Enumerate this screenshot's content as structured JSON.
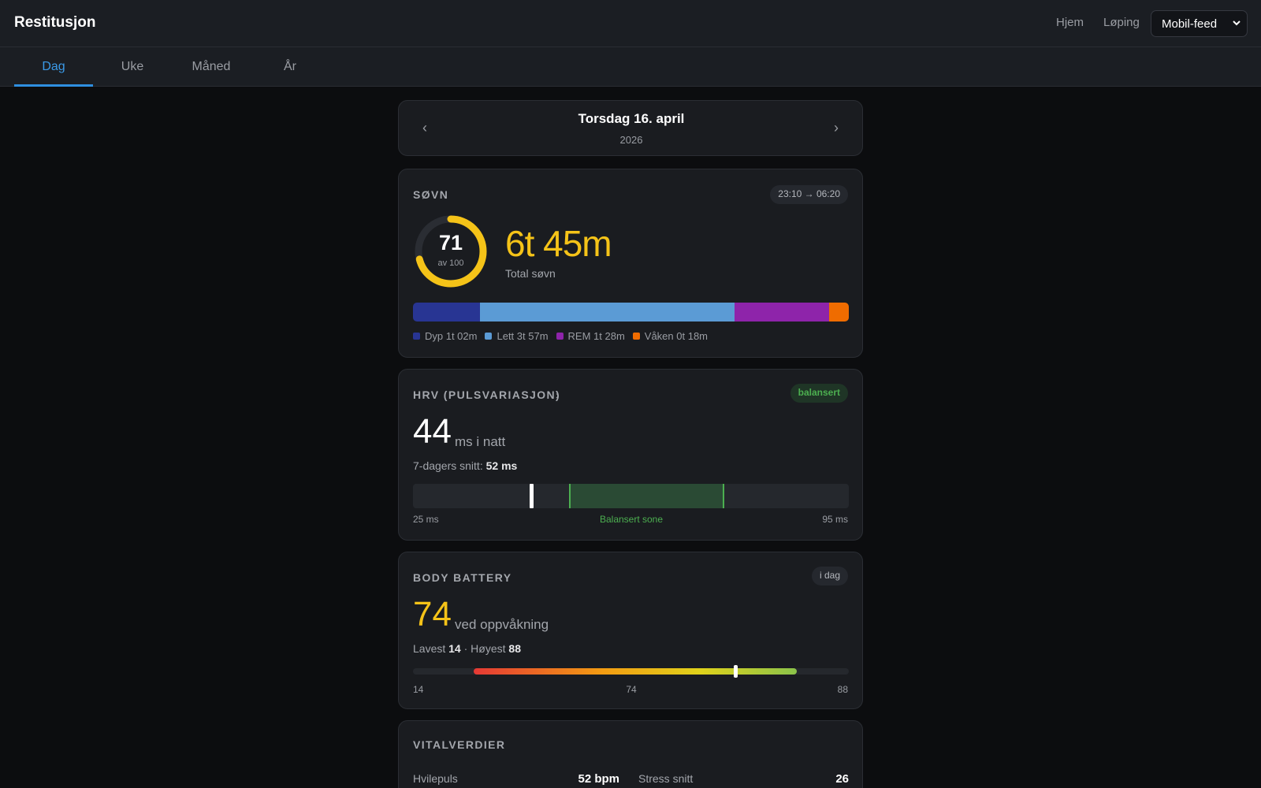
{
  "app": {
    "title": "Restitusjon"
  },
  "topnav": {
    "links": [
      "Hjem",
      "Løping"
    ],
    "feed_select": {
      "selected": "Mobil-feed"
    }
  },
  "tabs": [
    {
      "label": "Dag",
      "active": true
    },
    {
      "label": "Uke",
      "active": false
    },
    {
      "label": "Måned",
      "active": false
    },
    {
      "label": "År",
      "active": false
    }
  ],
  "date": {
    "prev_icon": "chevron-left-icon",
    "next_icon": "chevron-right-icon",
    "title": "Torsdag 16. april",
    "year": "2026"
  },
  "sleep": {
    "title": "SØVN",
    "time_range": "23:10 → 06:20",
    "score": "71",
    "score_max_label": "av 100",
    "score_value": 71,
    "score_max": 100,
    "total": "6t 45m",
    "total_label": "Total søvn",
    "stages": [
      {
        "label": "Dyp 1t 02m",
        "minutes": 62,
        "color": "#283593"
      },
      {
        "label": "Lett 3t 57m",
        "minutes": 237,
        "color": "#5b9bd5"
      },
      {
        "label": "REM 1t 28m",
        "minutes": 88,
        "color": "#8e24aa"
      },
      {
        "label": "Våken 0t 18m",
        "minutes": 18,
        "color": "#ef6c00"
      }
    ],
    "accent": "#f5c318"
  },
  "hrv": {
    "title": "HRV (PULSVARIASJON)",
    "status": "balansert",
    "value": "44",
    "unit": "ms i natt",
    "avg_prefix": "7-dagers snitt: ",
    "avg_value": "52 ms",
    "scale_min_label": "25 ms",
    "scale_max_label": "95 ms",
    "zone_label": "Balansert sone",
    "scale_min": 25,
    "scale_max": 95,
    "zone_low": 50,
    "zone_high": 75,
    "current": 44,
    "status_color": "#4caf50"
  },
  "body_battery": {
    "title": "BODY BATTERY",
    "period": "i dag",
    "value": "74",
    "unit": "ved oppvåkning",
    "lowest_label": "Lavest ",
    "lowest": "14",
    "separator": " · ",
    "highest_label": "Høyest ",
    "highest": "88",
    "scale_labels": [
      "14",
      "74",
      "88"
    ],
    "range_low": 14,
    "range_high": 88,
    "current": 74,
    "accent": "#f5c318"
  },
  "vitals": {
    "title": "VITALVERDIER",
    "items": [
      {
        "label": "Hvilepuls",
        "value": "52 bpm"
      },
      {
        "label": "Stress snitt",
        "value": "26"
      }
    ]
  }
}
